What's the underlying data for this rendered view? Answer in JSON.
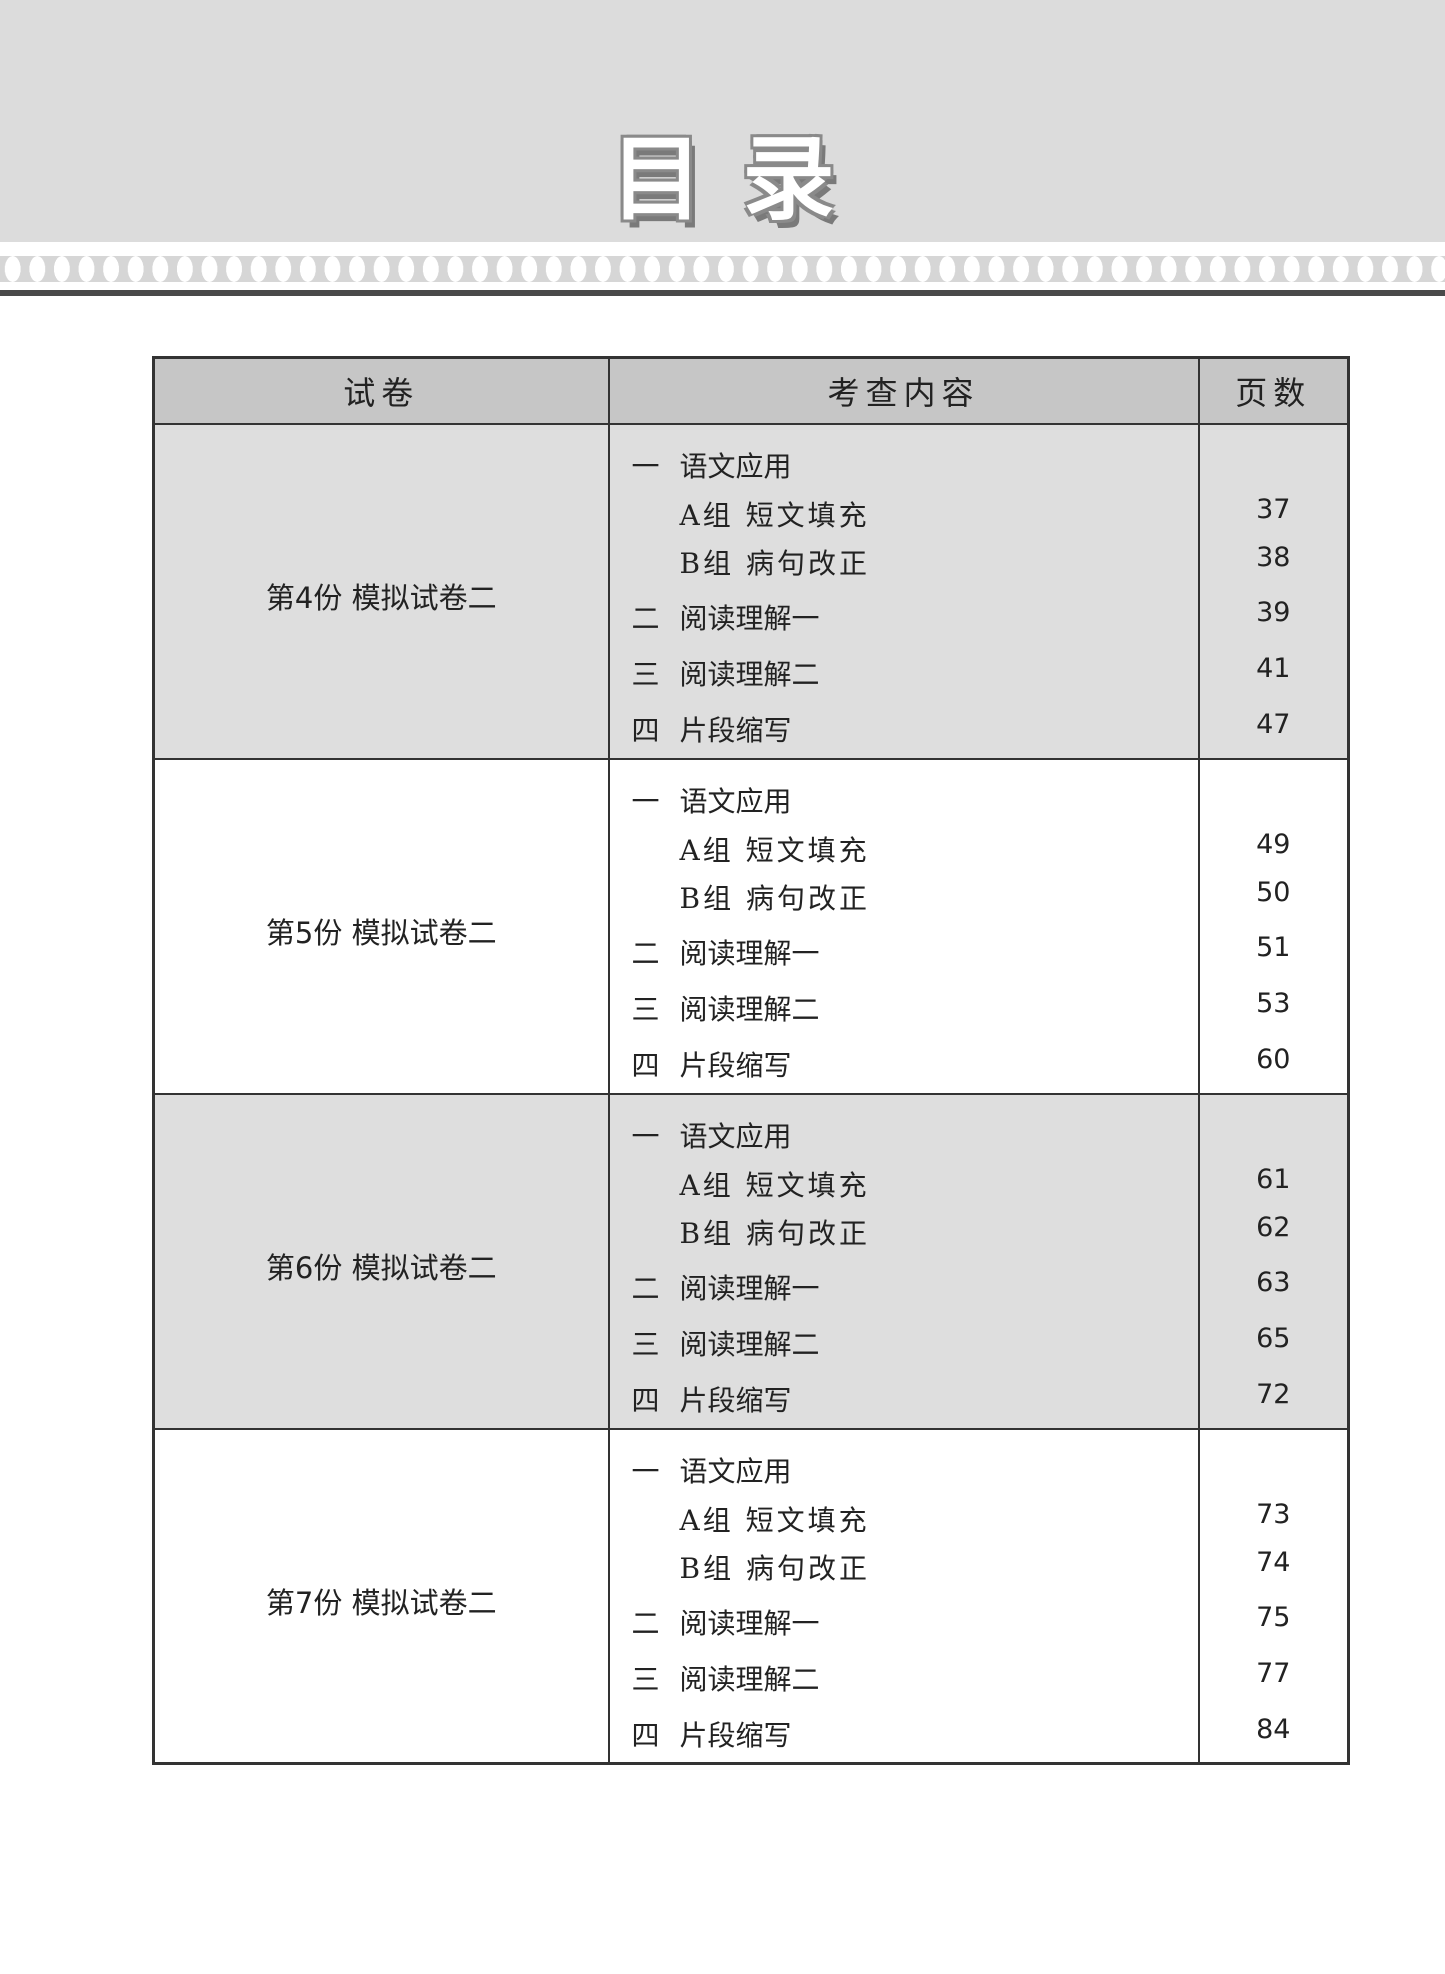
{
  "title": "目录",
  "headers": [
    "试卷",
    "考查内容",
    "页数"
  ],
  "sections": [
    {
      "paper": "第4份  模拟试卷二",
      "items": [
        {
          "num": "一",
          "text": "语文应用"
        },
        {
          "text": "A组 短文填充",
          "page": "37"
        },
        {
          "text": "B组 病句改正",
          "page": "38"
        },
        {
          "num": "二",
          "text": "阅读理解一",
          "page": "39"
        },
        {
          "num": "三",
          "text": "阅读理解二",
          "page": "41"
        },
        {
          "num": "四",
          "text": "片段缩写",
          "page": "47"
        }
      ]
    },
    {
      "paper": "第5份  模拟试卷二",
      "items": [
        {
          "num": "一",
          "text": "语文应用"
        },
        {
          "text": "A组 短文填充",
          "page": "49"
        },
        {
          "text": "B组 病句改正",
          "page": "50"
        },
        {
          "num": "二",
          "text": "阅读理解一",
          "page": "51"
        },
        {
          "num": "三",
          "text": "阅读理解二",
          "page": "53"
        },
        {
          "num": "四",
          "text": "片段缩写",
          "page": "60"
        }
      ]
    },
    {
      "paper": "第6份  模拟试卷二",
      "items": [
        {
          "num": "一",
          "text": "语文应用"
        },
        {
          "text": "A组 短文填充",
          "page": "61"
        },
        {
          "text": "B组 病句改正",
          "page": "62"
        },
        {
          "num": "二",
          "text": "阅读理解一",
          "page": "63"
        },
        {
          "num": "三",
          "text": "阅读理解二",
          "page": "65"
        },
        {
          "num": "四",
          "text": "片段缩写",
          "page": "72"
        }
      ]
    },
    {
      "paper": "第7份  模拟试卷二",
      "items": [
        {
          "num": "一",
          "text": "语文应用"
        },
        {
          "text": "A组 短文填充",
          "page": "73"
        },
        {
          "text": "B组 病句改正",
          "page": "74"
        },
        {
          "num": "二",
          "text": "阅读理解一",
          "page": "75"
        },
        {
          "num": "三",
          "text": "阅读理解二",
          "page": "77"
        },
        {
          "num": "四",
          "text": "片段缩写",
          "page": "84"
        }
      ]
    }
  ]
}
